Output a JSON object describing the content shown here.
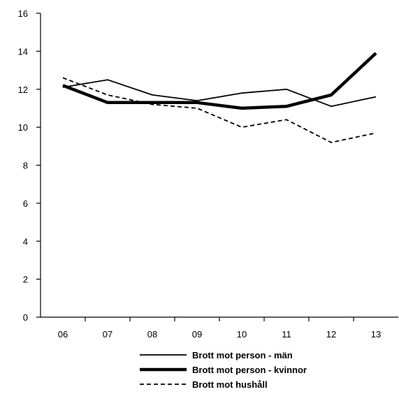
{
  "chart_data": {
    "type": "line",
    "categories": [
      "06",
      "07",
      "08",
      "09",
      "10",
      "11",
      "12",
      "13"
    ],
    "ylim": [
      0,
      16
    ],
    "yticks": [
      0,
      2,
      4,
      6,
      8,
      10,
      12,
      14,
      16
    ],
    "grid": false,
    "legend_position": "bottom",
    "series": [
      {
        "name": "Brott mot person - män",
        "style": "thin-solid",
        "color": "#000000",
        "values": [
          12.1,
          12.5,
          11.7,
          11.4,
          11.8,
          12.0,
          11.1,
          11.6
        ]
      },
      {
        "name": "Brott mot person -  kvinnor",
        "style": "thick-solid",
        "color": "#000000",
        "values": [
          12.2,
          11.3,
          11.3,
          11.3,
          11.0,
          11.1,
          11.7,
          13.9
        ]
      },
      {
        "name": "Brott mot hushåll",
        "style": "dashed",
        "color": "#000000",
        "values": [
          12.6,
          11.7,
          11.2,
          11.0,
          10.0,
          10.4,
          9.2,
          9.7
        ]
      }
    ]
  }
}
